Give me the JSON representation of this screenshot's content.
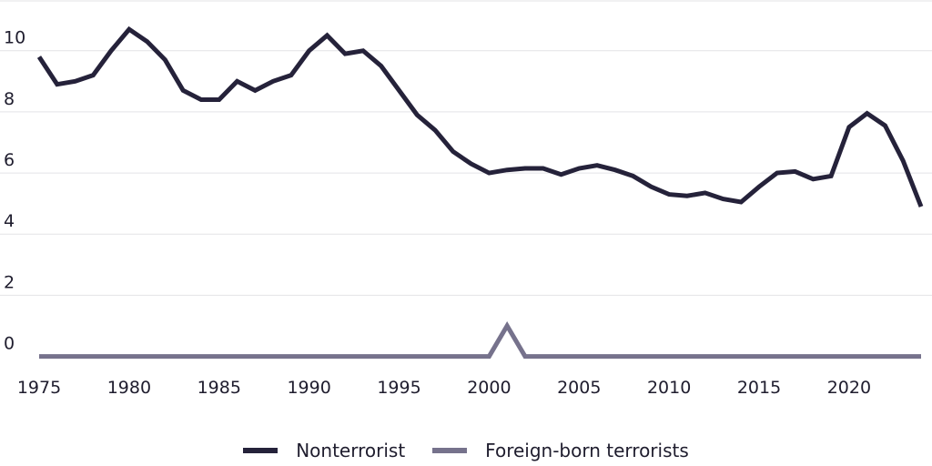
{
  "chart_data": {
    "type": "line",
    "title": "",
    "xlabel": "",
    "ylabel": "",
    "x": [
      1975,
      1976,
      1977,
      1978,
      1979,
      1980,
      1981,
      1982,
      1983,
      1984,
      1985,
      1986,
      1987,
      1988,
      1989,
      1990,
      1991,
      1992,
      1993,
      1994,
      1995,
      1996,
      1997,
      1998,
      1999,
      2000,
      2001,
      2002,
      2003,
      2004,
      2005,
      2006,
      2007,
      2008,
      2009,
      2010,
      2011,
      2012,
      2013,
      2014,
      2015,
      2016,
      2017,
      2018,
      2019,
      2020,
      2021,
      2022,
      2023,
      2024
    ],
    "series": [
      {
        "name": "Nonterrorist",
        "color": "#25223a",
        "values": [
          9.8,
          8.9,
          9.0,
          9.2,
          10.0,
          10.7,
          10.3,
          9.7,
          8.7,
          8.4,
          8.4,
          9.0,
          8.7,
          9.0,
          9.2,
          10.0,
          10.5,
          9.9,
          10.0,
          9.5,
          8.7,
          7.9,
          7.4,
          6.7,
          6.3,
          6.0,
          6.1,
          6.15,
          6.15,
          5.95,
          6.15,
          6.25,
          6.1,
          5.9,
          5.55,
          5.3,
          5.25,
          5.35,
          5.15,
          5.05,
          5.55,
          6.0,
          6.05,
          5.8,
          5.9,
          7.5,
          7.95,
          7.55,
          6.4,
          4.9
        ]
      },
      {
        "name": "Foreign-born terrorists",
        "color": "#76728c",
        "values": [
          0,
          0,
          0,
          0,
          0,
          0,
          0,
          0,
          0,
          0,
          0,
          0,
          0,
          0,
          0,
          0,
          0,
          0,
          0,
          0,
          0,
          0,
          0,
          0,
          0,
          0,
          1,
          0,
          0,
          0,
          0,
          0,
          0,
          0,
          0,
          0,
          0,
          0,
          0,
          0,
          0,
          0,
          0,
          0,
          0,
          0,
          0,
          0,
          0,
          0
        ]
      }
    ],
    "xlim": [
      1975,
      2024
    ],
    "ylim": [
      -0.4,
      11.6
    ],
    "x_ticks": [
      "1975",
      "1980",
      "1985",
      "1990",
      "1995",
      "2000",
      "2005",
      "2010",
      "2015",
      "2020"
    ],
    "y_ticks": [
      "0",
      "2",
      "4",
      "6",
      "8",
      "10"
    ],
    "grid": true,
    "legend_position": "bottom-center"
  }
}
